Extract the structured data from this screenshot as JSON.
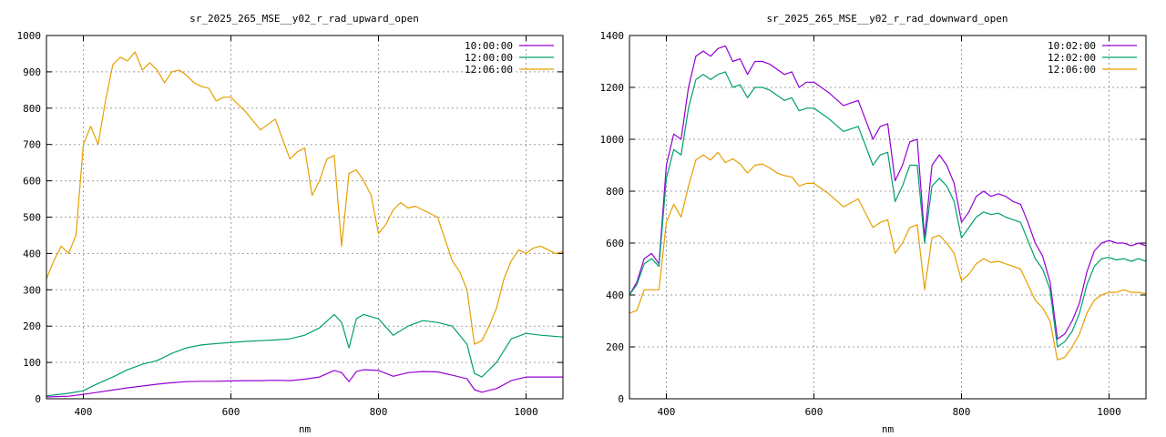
{
  "chart_data": [
    {
      "type": "line",
      "title": "sr_2025_265_MSE__y02_r_rad_upward_open",
      "xlabel": "nm",
      "ylabel": "",
      "xlim": [
        350,
        1050
      ],
      "ylim": [
        0,
        1000
      ],
      "x_ticks": [
        400,
        600,
        800,
        1000
      ],
      "y_ticks": [
        0,
        100,
        200,
        300,
        400,
        500,
        600,
        700,
        800,
        900,
        1000
      ],
      "grid": true,
      "legend_position": "top-right",
      "series": [
        {
          "name": "10:00:00",
          "color": "#9400d3",
          "x": [
            350,
            380,
            400,
            420,
            440,
            460,
            480,
            500,
            520,
            540,
            560,
            580,
            600,
            620,
            640,
            660,
            680,
            700,
            720,
            740,
            750,
            760,
            770,
            780,
            800,
            820,
            840,
            860,
            880,
            900,
            920,
            930,
            940,
            960,
            980,
            1000,
            1020,
            1050
          ],
          "y": [
            5,
            7,
            12,
            18,
            24,
            30,
            35,
            40,
            44,
            47,
            48,
            48,
            49,
            50,
            50,
            51,
            50,
            54,
            60,
            78,
            72,
            47,
            75,
            80,
            78,
            62,
            72,
            75,
            74,
            65,
            55,
            25,
            18,
            28,
            50,
            60,
            60,
            60
          ]
        },
        {
          "name": "12:00:00",
          "color": "#009e73",
          "x": [
            350,
            380,
            400,
            420,
            440,
            460,
            480,
            500,
            520,
            540,
            560,
            580,
            600,
            620,
            640,
            660,
            680,
            700,
            720,
            740,
            750,
            760,
            770,
            780,
            800,
            820,
            840,
            860,
            880,
            900,
            920,
            930,
            940,
            960,
            980,
            1000,
            1020,
            1050
          ],
          "y": [
            8,
            15,
            22,
            42,
            60,
            80,
            95,
            105,
            125,
            140,
            148,
            152,
            155,
            158,
            160,
            162,
            165,
            175,
            195,
            232,
            210,
            140,
            220,
            232,
            220,
            175,
            200,
            215,
            210,
            200,
            150,
            70,
            60,
            100,
            165,
            180,
            175,
            170
          ]
        },
        {
          "name": "12:06:00",
          "color": "#e69f00",
          "x": [
            350,
            360,
            370,
            380,
            390,
            400,
            410,
            420,
            430,
            440,
            450,
            460,
            470,
            480,
            490,
            500,
            510,
            520,
            530,
            540,
            550,
            560,
            570,
            580,
            590,
            600,
            620,
            640,
            660,
            680,
            690,
            700,
            710,
            720,
            730,
            740,
            750,
            760,
            770,
            780,
            790,
            800,
            810,
            820,
            830,
            840,
            850,
            860,
            870,
            880,
            890,
            900,
            910,
            920,
            930,
            940,
            950,
            960,
            970,
            980,
            990,
            1000,
            1010,
            1020,
            1030,
            1040,
            1050
          ],
          "y": [
            330,
            380,
            420,
            400,
            450,
            700,
            750,
            700,
            820,
            920,
            940,
            930,
            955,
            905,
            925,
            905,
            870,
            900,
            905,
            890,
            870,
            860,
            855,
            820,
            830,
            830,
            790,
            740,
            770,
            660,
            680,
            690,
            560,
            600,
            660,
            670,
            420,
            620,
            630,
            600,
            560,
            455,
            480,
            520,
            540,
            525,
            530,
            520,
            510,
            500,
            440,
            380,
            350,
            300,
            150,
            160,
            200,
            250,
            330,
            380,
            410,
            400,
            415,
            420,
            410,
            400,
            405
          ]
        }
      ]
    },
    {
      "type": "line",
      "title": "sr_2025_265_MSE__y02_r_rad_downward_open",
      "xlabel": "nm",
      "ylabel": "",
      "xlim": [
        350,
        1050
      ],
      "ylim": [
        0,
        1400
      ],
      "x_ticks": [
        400,
        600,
        800,
        1000
      ],
      "y_ticks": [
        0,
        200,
        400,
        600,
        800,
        1000,
        1200,
        1400
      ],
      "grid": true,
      "legend_position": "top-right",
      "series": [
        {
          "name": "10:02:00",
          "color": "#9400d3",
          "x": [
            350,
            360,
            370,
            380,
            390,
            400,
            410,
            420,
            430,
            440,
            450,
            460,
            470,
            480,
            490,
            500,
            510,
            520,
            530,
            540,
            550,
            560,
            570,
            580,
            590,
            600,
            620,
            640,
            660,
            680,
            690,
            700,
            710,
            720,
            730,
            740,
            750,
            760,
            770,
            780,
            790,
            800,
            810,
            820,
            830,
            840,
            850,
            860,
            870,
            880,
            890,
            900,
            910,
            920,
            930,
            940,
            950,
            960,
            970,
            980,
            990,
            1000,
            1010,
            1020,
            1030,
            1040,
            1050
          ],
          "y": [
            400,
            450,
            540,
            560,
            520,
            900,
            1020,
            1000,
            1200,
            1320,
            1340,
            1320,
            1350,
            1360,
            1300,
            1310,
            1250,
            1300,
            1300,
            1290,
            1270,
            1250,
            1260,
            1200,
            1220,
            1220,
            1180,
            1130,
            1150,
            1000,
            1050,
            1060,
            840,
            900,
            990,
            1000,
            620,
            900,
            940,
            900,
            830,
            680,
            720,
            780,
            800,
            780,
            790,
            780,
            760,
            750,
            680,
            600,
            550,
            450,
            230,
            250,
            300,
            370,
            490,
            570,
            600,
            610,
            600,
            600,
            590,
            600,
            590
          ]
        },
        {
          "name": "12:02:00",
          "color": "#009e73",
          "x": [
            350,
            360,
            370,
            380,
            390,
            400,
            410,
            420,
            430,
            440,
            450,
            460,
            470,
            480,
            490,
            500,
            510,
            520,
            530,
            540,
            550,
            560,
            570,
            580,
            590,
            600,
            620,
            640,
            660,
            680,
            690,
            700,
            710,
            720,
            730,
            740,
            750,
            760,
            770,
            780,
            790,
            800,
            810,
            820,
            830,
            840,
            850,
            860,
            870,
            880,
            890,
            900,
            910,
            920,
            930,
            940,
            950,
            960,
            970,
            980,
            990,
            1000,
            1010,
            1020,
            1030,
            1040,
            1050
          ],
          "y": [
            400,
            440,
            520,
            540,
            510,
            850,
            960,
            940,
            1120,
            1230,
            1250,
            1230,
            1250,
            1260,
            1200,
            1210,
            1160,
            1200,
            1200,
            1190,
            1170,
            1150,
            1160,
            1110,
            1120,
            1120,
            1080,
            1030,
            1050,
            900,
            940,
            950,
            760,
            820,
            900,
            900,
            600,
            820,
            850,
            820,
            760,
            620,
            660,
            700,
            720,
            710,
            715,
            700,
            690,
            680,
            610,
            540,
            500,
            420,
            200,
            220,
            260,
            330,
            440,
            510,
            540,
            545,
            535,
            540,
            530,
            540,
            530
          ]
        },
        {
          "name": "12:06:00",
          "color": "#e69f00",
          "x": [
            350,
            360,
            370,
            380,
            390,
            400,
            410,
            420,
            430,
            440,
            450,
            460,
            470,
            480,
            490,
            500,
            510,
            520,
            530,
            540,
            550,
            560,
            570,
            580,
            590,
            600,
            620,
            640,
            660,
            680,
            690,
            700,
            710,
            720,
            730,
            740,
            750,
            760,
            770,
            780,
            790,
            800,
            810,
            820,
            830,
            840,
            850,
            860,
            870,
            880,
            890,
            900,
            910,
            920,
            930,
            940,
            950,
            960,
            970,
            980,
            990,
            1000,
            1010,
            1020,
            1030,
            1040,
            1050
          ],
          "y": [
            330,
            340,
            420,
            420,
            420,
            680,
            750,
            700,
            820,
            920,
            940,
            920,
            950,
            910,
            925,
            905,
            870,
            900,
            905,
            890,
            870,
            860,
            855,
            820,
            830,
            830,
            790,
            740,
            770,
            660,
            680,
            690,
            560,
            600,
            660,
            670,
            420,
            620,
            630,
            600,
            560,
            455,
            480,
            520,
            540,
            525,
            530,
            520,
            510,
            500,
            440,
            380,
            350,
            300,
            150,
            160,
            200,
            250,
            330,
            380,
            400,
            410,
            410,
            420,
            410,
            410,
            405
          ]
        }
      ]
    }
  ]
}
